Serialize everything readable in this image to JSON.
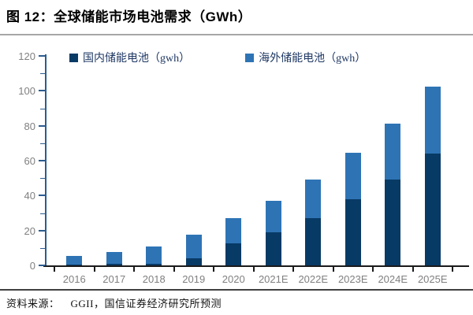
{
  "title": "图 12：全球储能市场电池需求（GWh）",
  "footer": {
    "source_label": "资料来源：",
    "source_text": "GGII，国信证券经济研究所预测"
  },
  "colors": {
    "domestic": "#083a66",
    "overseas": "#2e74b5",
    "y_axis": "#2c5d8f",
    "x_axis": "#1a1a1a",
    "tick_label": "#808080",
    "legend_text": "#1f3864",
    "title_divider": "#a6a6a6",
    "footer_divider": "#404040"
  },
  "chart_data": {
    "type": "bar",
    "stacked": true,
    "title": "图 12：全球储能市场电池需求（GWh）",
    "categories": [
      "2016",
      "2017",
      "2018",
      "2019",
      "2020",
      "2021E",
      "2022E",
      "2023E",
      "2024E",
      "2025E"
    ],
    "series": [
      {
        "name": "国内储能电池（gwh）",
        "color_key": "domestic",
        "values": [
          0.5,
          1,
          1,
          4,
          12.5,
          19,
          27,
          38,
          49,
          64
        ]
      },
      {
        "name": "海外储能电池（gwh）",
        "color_key": "overseas",
        "values": [
          5,
          6.5,
          10,
          13.5,
          14.5,
          18,
          22,
          26.5,
          32,
          38.5
        ]
      }
    ],
    "totals": [
      5.5,
      7.5,
      11,
      17.5,
      27,
      37,
      49,
      64.5,
      81,
      102.5
    ],
    "xlabel": "",
    "ylabel": "",
    "ylim": [
      0,
      120
    ],
    "y_ticks": [
      0,
      20,
      40,
      60,
      80,
      100,
      120
    ],
    "minor_tick_step": 10,
    "legend_position": "top-inside",
    "grid": false
  }
}
